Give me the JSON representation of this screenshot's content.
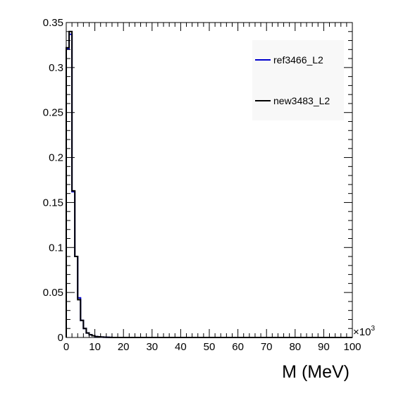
{
  "chart_data": {
    "type": "line",
    "title": "",
    "xlabel": "M (MeV)",
    "ylabel": "",
    "x_exponent_label": "×10",
    "x_exponent_power": "3",
    "xlim": [
      0,
      100
    ],
    "ylim": [
      0,
      0.35
    ],
    "x_ticks": [
      {
        "value": 0,
        "label": "0"
      },
      {
        "value": 10,
        "label": "10"
      },
      {
        "value": 20,
        "label": "20"
      },
      {
        "value": 30,
        "label": "30"
      },
      {
        "value": 40,
        "label": "40"
      },
      {
        "value": 50,
        "label": "50"
      },
      {
        "value": 60,
        "label": "60"
      },
      {
        "value": 70,
        "label": "70"
      },
      {
        "value": 80,
        "label": "80"
      },
      {
        "value": 90,
        "label": "90"
      },
      {
        "value": 100,
        "label": "100"
      }
    ],
    "y_ticks": [
      {
        "value": 0,
        "label": "0"
      },
      {
        "value": 0.05,
        "label": "0.05"
      },
      {
        "value": 0.1,
        "label": "0.1"
      },
      {
        "value": 0.15,
        "label": "0.15"
      },
      {
        "value": 0.2,
        "label": "0.2"
      },
      {
        "value": 0.25,
        "label": "0.25"
      },
      {
        "value": 0.3,
        "label": "0.3"
      },
      {
        "value": 0.35,
        "label": "0.35"
      }
    ],
    "bin_edges": [
      0,
      1,
      2,
      3,
      4,
      5,
      6,
      7,
      8,
      9,
      10,
      11,
      12,
      13,
      14,
      15,
      16
    ],
    "series": [
      {
        "name": "ref3466_L2",
        "color": "#0000cc",
        "values": [
          0.321,
          0.337,
          0.162,
          0.09,
          0.044,
          0.019,
          0.01,
          0.005,
          0.003,
          0.002,
          0.001,
          0.0008,
          0.0005,
          0.0003,
          0.0002,
          0.0001
        ]
      },
      {
        "name": "new3483_L2",
        "color": "#000000",
        "values": [
          0.322,
          0.34,
          0.163,
          0.09,
          0.042,
          0.019,
          0.01,
          0.005,
          0.003,
          0.002,
          0.001,
          0.0008,
          0.0005,
          0.0003,
          0.0002,
          0.0001
        ]
      }
    ],
    "grid": false,
    "legend_position": "top-right"
  }
}
